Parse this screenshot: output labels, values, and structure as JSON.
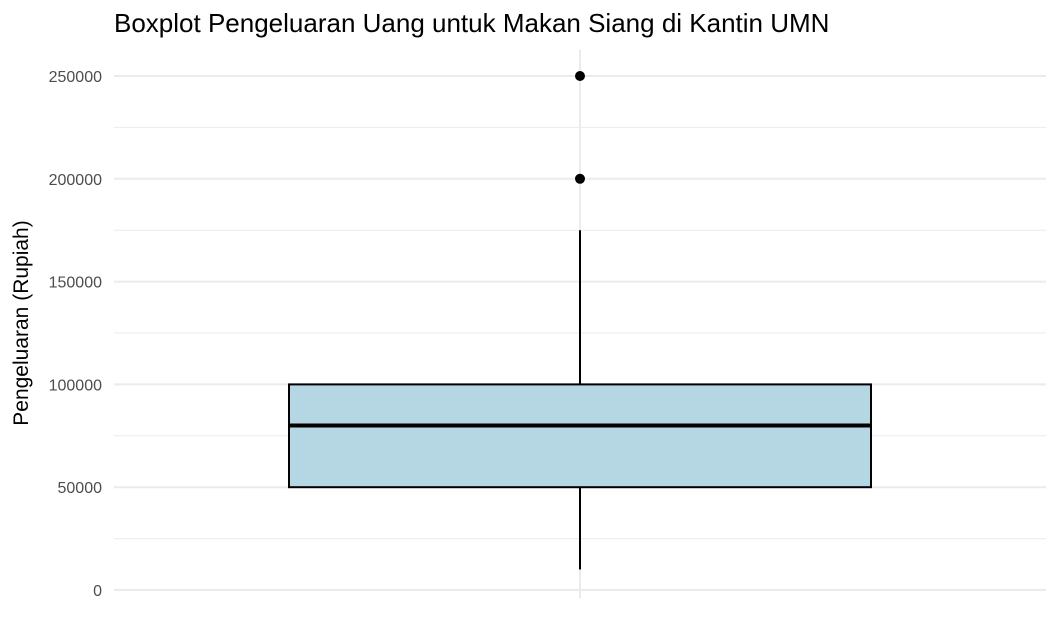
{
  "chart_data": {
    "type": "boxplot",
    "title": "Boxplot Pengeluaran Uang untuk Makan Siang di Kantin UMN",
    "xlabel": "",
    "ylabel": "Pengeluaran (Rupiah)",
    "ylim": [
      0,
      250000
    ],
    "y_ticks": [
      0,
      50000,
      100000,
      150000,
      200000,
      250000
    ],
    "y_tick_labels": [
      "0",
      "50000",
      "100000",
      "150000",
      "200000",
      "250000"
    ],
    "grid": true,
    "box": {
      "whisker_low": 10000,
      "q1": 50000,
      "median": 80000,
      "q3": 100000,
      "whisker_high": 175000
    },
    "outliers": [
      200000,
      250000
    ],
    "colors": {
      "box_fill": "#b5d7e4",
      "box_stroke": "#000000",
      "grid": "#ebebeb",
      "points": "#000000"
    }
  }
}
